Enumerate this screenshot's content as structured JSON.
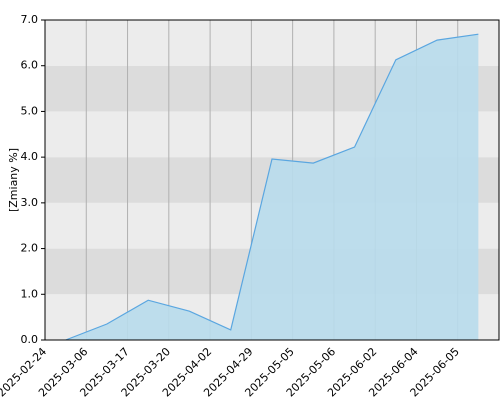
{
  "chart_data": {
    "type": "area",
    "y_label": "[Zmiany %]",
    "categories": [
      "2025-02-24",
      "2025-03-06",
      "2025-03-17",
      "2025-03-20",
      "2025-04-02",
      "2025-04-29",
      "2025-05-05",
      "2025-05-06",
      "2025-06-02",
      "2025-06-04",
      "2025-06-05"
    ],
    "values": [
      0.0,
      0.35,
      0.87,
      0.63,
      0.22,
      3.96,
      3.87,
      4.22,
      6.13,
      6.56,
      6.69
    ],
    "color": "#5aa6e0",
    "fill": "#b8dcec",
    "ylim": [
      0,
      7
    ],
    "yticks": [
      {
        "value": 0,
        "label": "0.0"
      },
      {
        "value": 1,
        "label": "1.0"
      },
      {
        "value": 2,
        "label": "2.0"
      },
      {
        "value": 3,
        "label": "3.0"
      },
      {
        "value": 4,
        "label": "4.0"
      },
      {
        "value": 5,
        "label": "5.0"
      },
      {
        "value": 6,
        "label": "6.0"
      },
      {
        "value": 7,
        "label": "7.0"
      }
    ],
    "grid": true
  }
}
